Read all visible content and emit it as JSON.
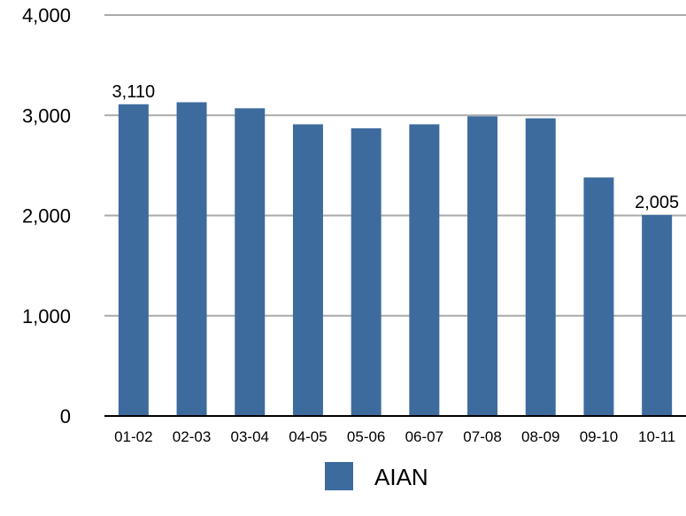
{
  "chart_data": {
    "type": "bar",
    "title": "",
    "xlabel": "",
    "ylabel": "",
    "categories": [
      "01-02",
      "02-03",
      "03-04",
      "04-05",
      "05-06",
      "06-07",
      "07-08",
      "08-09",
      "09-10",
      "10-11"
    ],
    "series": [
      {
        "name": "AIAN",
        "color": "#3d6b9e",
        "values": [
          3110,
          3130,
          3070,
          2910,
          2870,
          2910,
          2990,
          2970,
          2380,
          2005
        ]
      }
    ],
    "data_labels": [
      {
        "index": 0,
        "text": "3,110"
      },
      {
        "index": 9,
        "text": "2,005"
      }
    ],
    "ylim": [
      0,
      4000
    ],
    "yticks": [
      0,
      1000,
      2000,
      3000,
      4000
    ],
    "ytick_labels": [
      "0",
      "1,000",
      "2,000",
      "3,000",
      "4,000"
    ],
    "grid": true,
    "legend_position": "bottom-center",
    "colors": {
      "bar": "#3d6b9e",
      "grid": "#aaaaaa",
      "axis": "#000000"
    }
  }
}
